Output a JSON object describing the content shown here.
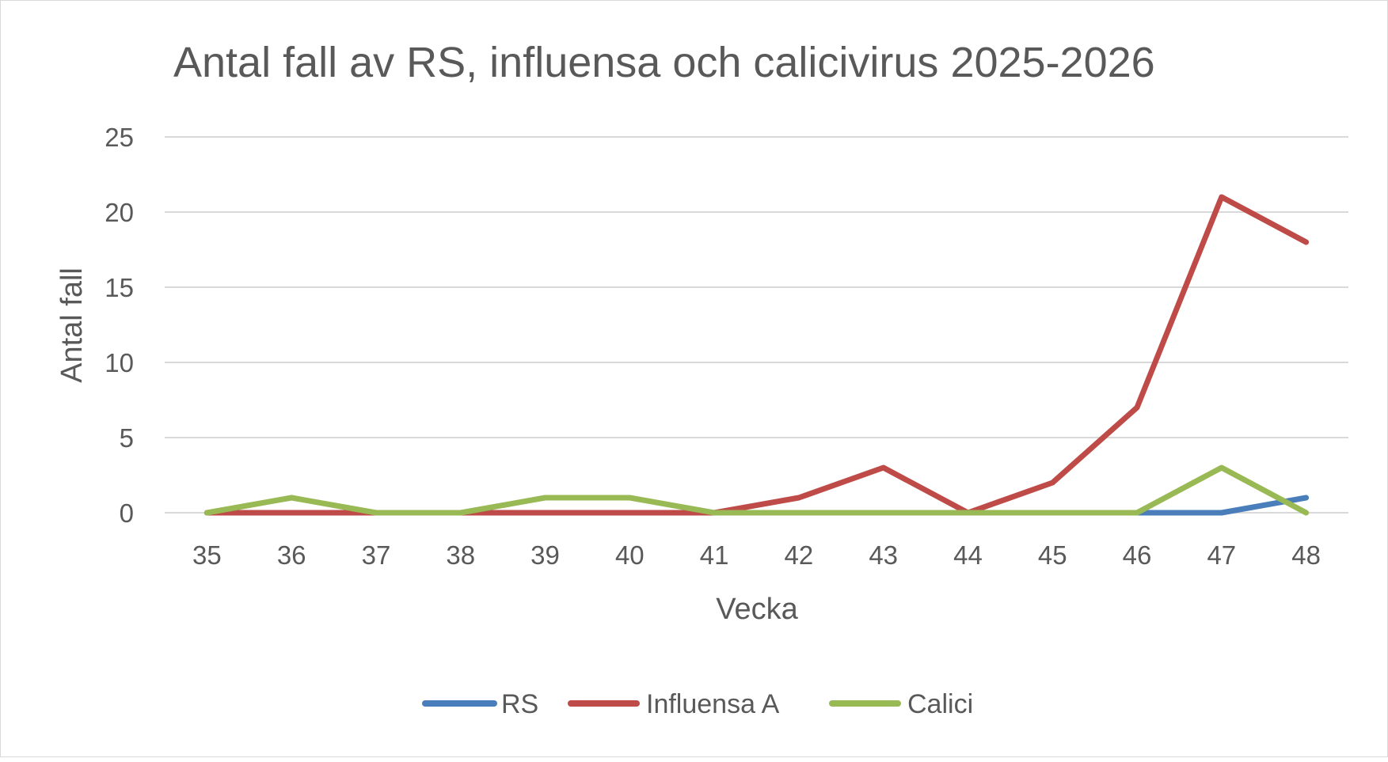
{
  "chart_data": {
    "type": "line",
    "title": "Antal fall av RS, influensa och calicivirus 2025-2026",
    "xlabel": "Vecka",
    "ylabel": "Antal fall",
    "categories": [
      "35",
      "36",
      "37",
      "38",
      "39",
      "40",
      "41",
      "42",
      "43",
      "44",
      "45",
      "46",
      "47",
      "48"
    ],
    "ylim": [
      0,
      25
    ],
    "yticks": [
      "0",
      "5",
      "10",
      "15",
      "20",
      "25"
    ],
    "grid": true,
    "legend_position": "bottom",
    "series": [
      {
        "name": "RS",
        "color": "#4a7ebb",
        "values": [
          0,
          0,
          0,
          0,
          0,
          0,
          0,
          0,
          0,
          0,
          0,
          0,
          0,
          1
        ]
      },
      {
        "name": "Influensa A",
        "color": "#be4b48",
        "values": [
          0,
          0,
          0,
          0,
          0,
          0,
          0,
          1,
          3,
          0,
          2,
          7,
          21,
          18
        ]
      },
      {
        "name": "Calici",
        "color": "#98b954",
        "values": [
          0,
          1,
          0,
          0,
          1,
          1,
          0,
          0,
          0,
          0,
          0,
          0,
          3,
          0
        ]
      }
    ]
  }
}
